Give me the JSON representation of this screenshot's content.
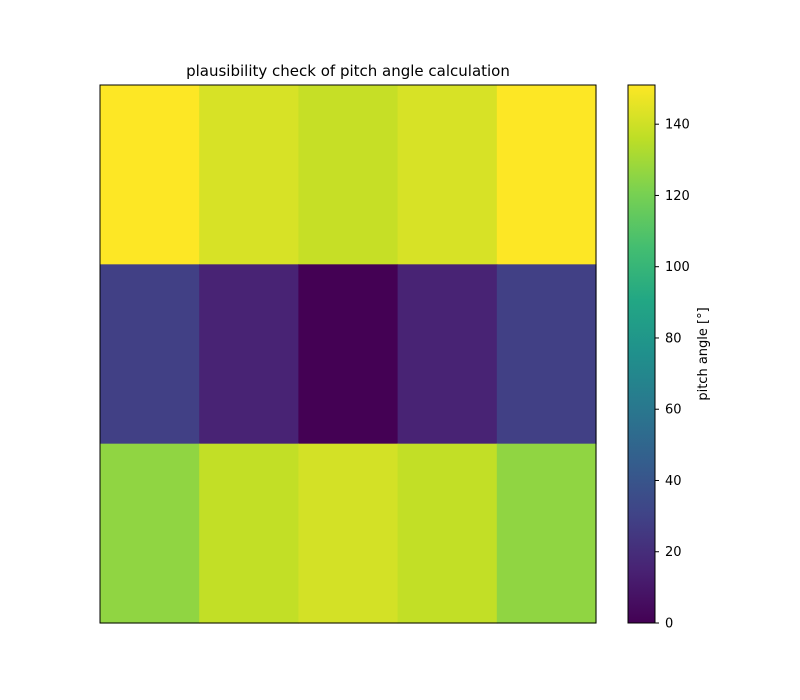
{
  "chart_data": {
    "type": "heatmap",
    "title": "plausibility check of pitch angle calculation",
    "xlabel": "",
    "ylabel": "",
    "axes_ticks": "none",
    "colormap": "viridis",
    "rows": 3,
    "cols": 5,
    "values": [
      [
        151,
        142,
        138,
        142,
        151
      ],
      [
        29,
        15,
        0,
        15,
        29
      ],
      [
        126,
        137,
        141,
        137,
        126
      ]
    ],
    "colorbar": {
      "label": "pitch angle [°]",
      "range": [
        0,
        151
      ],
      "ticks": [
        0,
        20,
        40,
        60,
        80,
        100,
        120,
        140
      ]
    }
  }
}
